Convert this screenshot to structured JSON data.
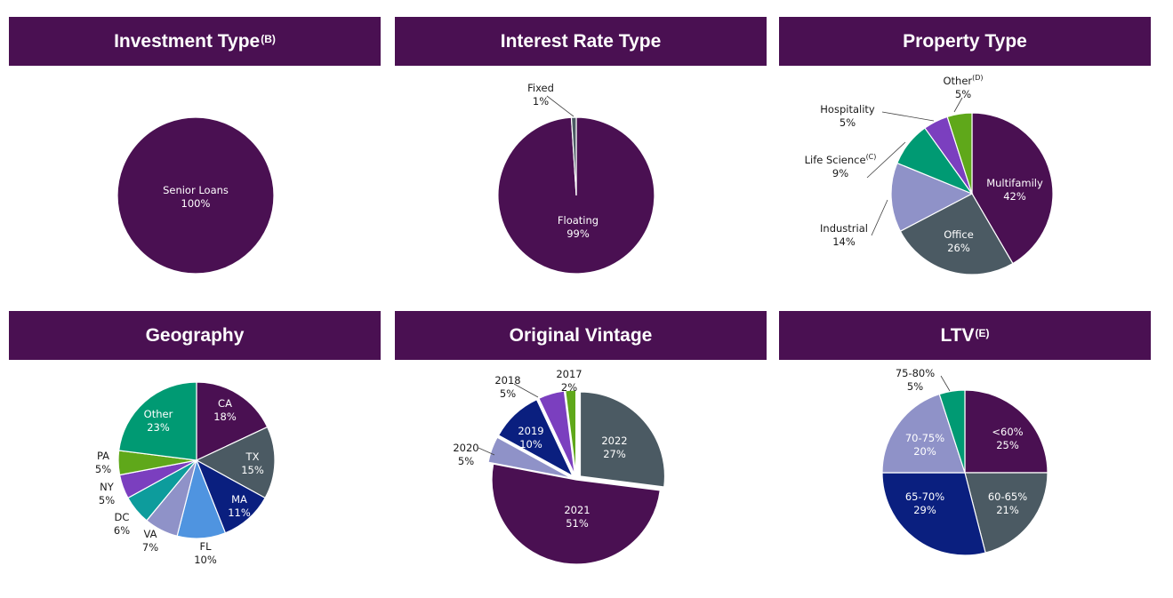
{
  "panels": [
    {
      "title": "Investment Type",
      "sup": "(B)"
    },
    {
      "title": "Interest Rate Type",
      "sup": ""
    },
    {
      "title": "Property Type",
      "sup": ""
    },
    {
      "title": "Geography",
      "sup": ""
    },
    {
      "title": "Original Vintage",
      "sup": ""
    },
    {
      "title": "LTV",
      "sup": "(E)"
    }
  ],
  "colors": {
    "header_bg": "#4a1052",
    "purple_dark": "#4a1052",
    "slate": "#4b5a63",
    "lavender": "#8f92c8",
    "green": "#009a73",
    "violet": "#7b3fbf",
    "lime": "#5fa81a",
    "navy": "#0a1f7f",
    "blue": "#4f94e0",
    "teal": "#0d9c9c"
  },
  "chart_data": [
    {
      "type": "pie",
      "title": "Investment Type(B)",
      "slices": [
        {
          "label": "Senior Loans",
          "value": 100,
          "value_label": "100%",
          "color": "#4a1052"
        }
      ]
    },
    {
      "type": "pie",
      "title": "Interest Rate Type",
      "slices": [
        {
          "label": "Floating",
          "value": 99,
          "value_label": "99%",
          "color": "#4a1052"
        },
        {
          "label": "Fixed",
          "value": 1,
          "value_label": "1%",
          "color": "#4b5a63"
        }
      ]
    },
    {
      "type": "pie",
      "title": "Property Type",
      "slices": [
        {
          "label": "Multifamily",
          "value": 42,
          "value_label": "42%",
          "color": "#4a1052"
        },
        {
          "label": "Office",
          "value": 26,
          "value_label": "26%",
          "color": "#4b5a63"
        },
        {
          "label": "Industrial",
          "value": 14,
          "value_label": "14%",
          "color": "#8f92c8"
        },
        {
          "label": "Life Science",
          "sup": "(C)",
          "value": 9,
          "value_label": "9%",
          "color": "#009a73"
        },
        {
          "label": "Hospitality",
          "value": 5,
          "value_label": "5%",
          "color": "#7b3fbf"
        },
        {
          "label": "Other",
          "sup": "(D)",
          "value": 5,
          "value_label": "5%",
          "color": "#5fa81a"
        }
      ]
    },
    {
      "type": "pie",
      "title": "Geography",
      "slices": [
        {
          "label": "CA",
          "value": 18,
          "value_label": "18%",
          "color": "#4a1052"
        },
        {
          "label": "TX",
          "value": 15,
          "value_label": "15%",
          "color": "#4b5a63"
        },
        {
          "label": "MA",
          "value": 11,
          "value_label": "11%",
          "color": "#0a1f7f"
        },
        {
          "label": "FL",
          "value": 10,
          "value_label": "10%",
          "color": "#4f94e0"
        },
        {
          "label": "VA",
          "value": 7,
          "value_label": "7%",
          "color": "#8f92c8"
        },
        {
          "label": "DC",
          "value": 6,
          "value_label": "6%",
          "color": "#0d9c9c"
        },
        {
          "label": "NY",
          "value": 5,
          "value_label": "5%",
          "color": "#7b3fbf"
        },
        {
          "label": "PA",
          "value": 5,
          "value_label": "5%",
          "color": "#5fa81a"
        },
        {
          "label": "Other",
          "value": 23,
          "value_label": "23%",
          "color": "#009a73"
        }
      ]
    },
    {
      "type": "pie",
      "title": "Original Vintage",
      "slices": [
        {
          "label": "2022",
          "value": 27,
          "value_label": "27%",
          "color": "#4b5a63"
        },
        {
          "label": "2021",
          "value": 51,
          "value_label": "51%",
          "color": "#4a1052"
        },
        {
          "label": "2020",
          "value": 5,
          "value_label": "5%",
          "color": "#8f92c8"
        },
        {
          "label": "2019",
          "value": 10,
          "value_label": "10%",
          "color": "#0a1f7f"
        },
        {
          "label": "2018",
          "value": 5,
          "value_label": "5%",
          "color": "#7b3fbf"
        },
        {
          "label": "2017",
          "value": 2,
          "value_label": "2%",
          "color": "#5fa81a"
        }
      ]
    },
    {
      "type": "pie",
      "title": "LTV(E)",
      "slices": [
        {
          "label": "<60%",
          "value": 25,
          "value_label": "25%",
          "color": "#4a1052"
        },
        {
          "label": "60-65%",
          "value": 21,
          "value_label": "21%",
          "color": "#4b5a63"
        },
        {
          "label": "65-70%",
          "value": 29,
          "value_label": "29%",
          "color": "#0a1f7f"
        },
        {
          "label": "70-75%",
          "value": 20,
          "value_label": "20%",
          "color": "#8f92c8"
        },
        {
          "label": "75-80%",
          "value": 5,
          "value_label": "5%",
          "color": "#009a73"
        }
      ]
    }
  ]
}
